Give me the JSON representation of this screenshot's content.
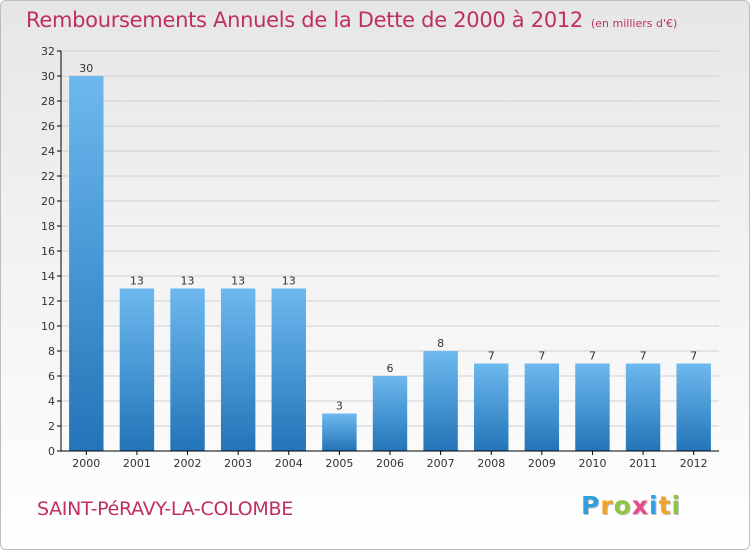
{
  "title": "Remboursements Annuels de la Dette de 2000 à 2012",
  "subtitle": "(en milliers d'€)",
  "commune": "SAINT-PéRAVY-LA-COLOMBE",
  "logo": {
    "letters": [
      "P",
      "r",
      "o",
      "x",
      "i",
      "t",
      "i"
    ],
    "colors": [
      "#2f9fe0",
      "#f0a52a",
      "#8ec63f",
      "#e94a8a",
      "#2f9fe0",
      "#f0a52a",
      "#8ec63f"
    ]
  },
  "colors": {
    "title": "#c0305d",
    "bar_top": "#6db9ef",
    "bar_bottom": "#2374b8",
    "axis": "#000000",
    "grid": "#d0d0d0"
  },
  "chart_data": {
    "type": "bar",
    "categories": [
      "2000",
      "2001",
      "2002",
      "2003",
      "2004",
      "2005",
      "2006",
      "2007",
      "2008",
      "2009",
      "2010",
      "2011",
      "2012"
    ],
    "values": [
      30,
      13,
      13,
      13,
      13,
      3,
      6,
      8,
      7,
      7,
      7,
      7,
      7
    ],
    "data_labels": [
      "30",
      "13",
      "13",
      "13",
      "13",
      "3",
      "6",
      "8",
      "7",
      "7",
      "7",
      "7",
      "7"
    ],
    "ylim": [
      0,
      32
    ],
    "yticks": [
      0,
      2,
      4,
      6,
      8,
      10,
      12,
      14,
      16,
      18,
      20,
      22,
      24,
      26,
      28,
      30,
      32
    ],
    "grid": true,
    "xlabel": "",
    "ylabel": ""
  }
}
